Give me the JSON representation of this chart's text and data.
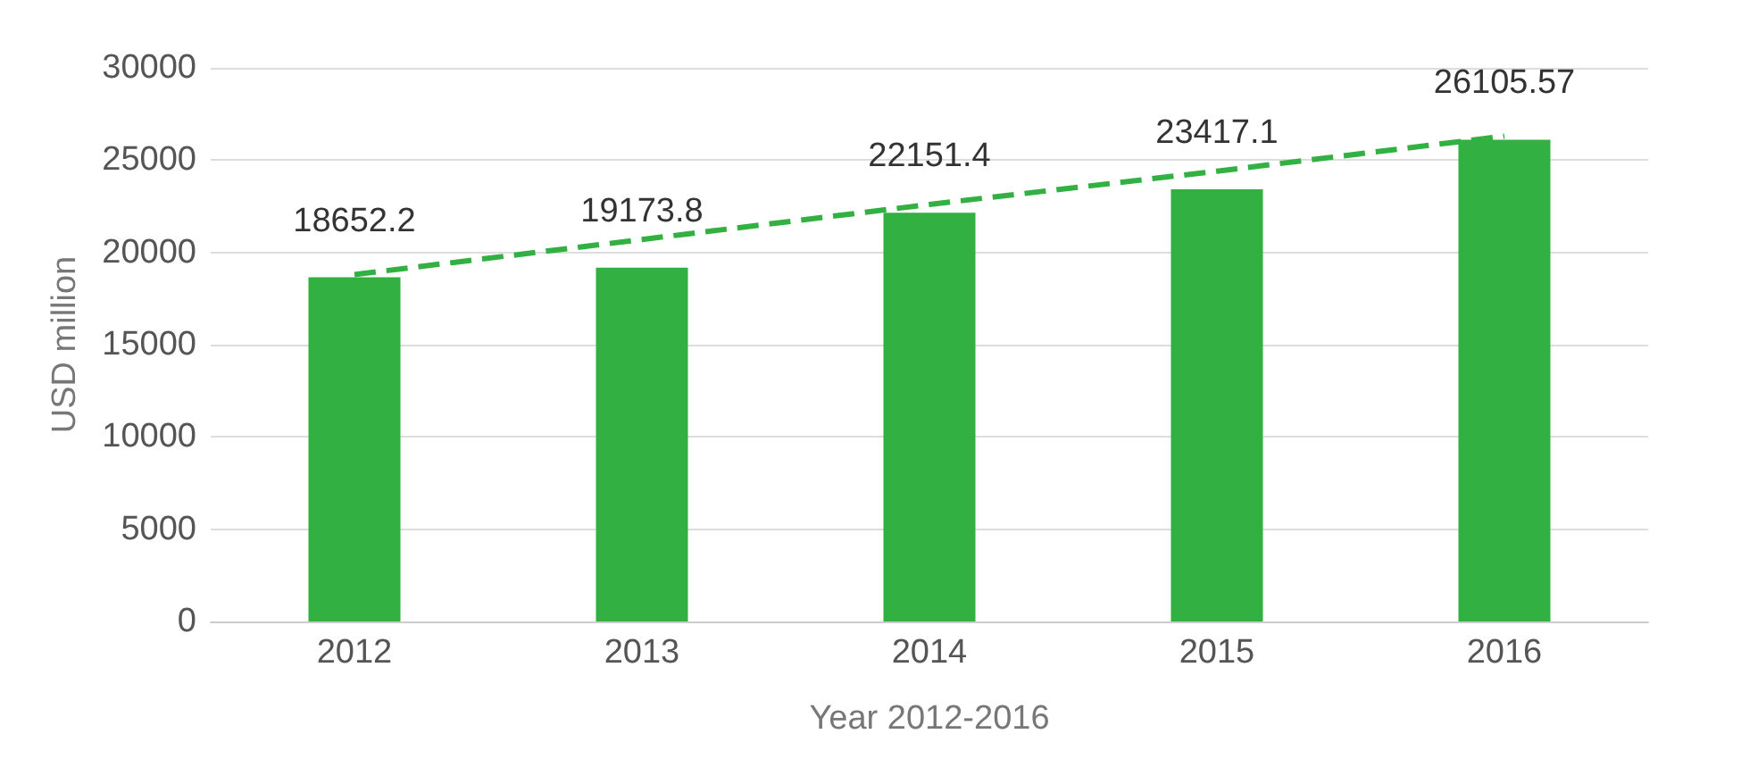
{
  "chart_data": {
    "type": "bar",
    "xlabel": "Year 2012-2016",
    "ylabel": "USD million",
    "categories": [
      "2012",
      "2013",
      "2014",
      "2015",
      "2016"
    ],
    "series": [
      {
        "color": "#33b042",
        "values": [
          18652.2,
          19173.8,
          22151.4,
          23417.1,
          26105.57
        ]
      },
      {
        "type": "line",
        "color": "#33b042",
        "line_style": "dashed",
        "values": [
          18800,
          20700,
          22600,
          24400,
          26300
        ]
      }
    ],
    "value_labels": [
      "18652.2",
      "19173.8",
      "22151.4",
      "23417.1",
      "26105.57"
    ],
    "ylim": [
      0,
      30000
    ],
    "yticks": [
      0,
      5000,
      10000,
      15000,
      20000,
      25000,
      30000
    ],
    "grid": "y"
  }
}
